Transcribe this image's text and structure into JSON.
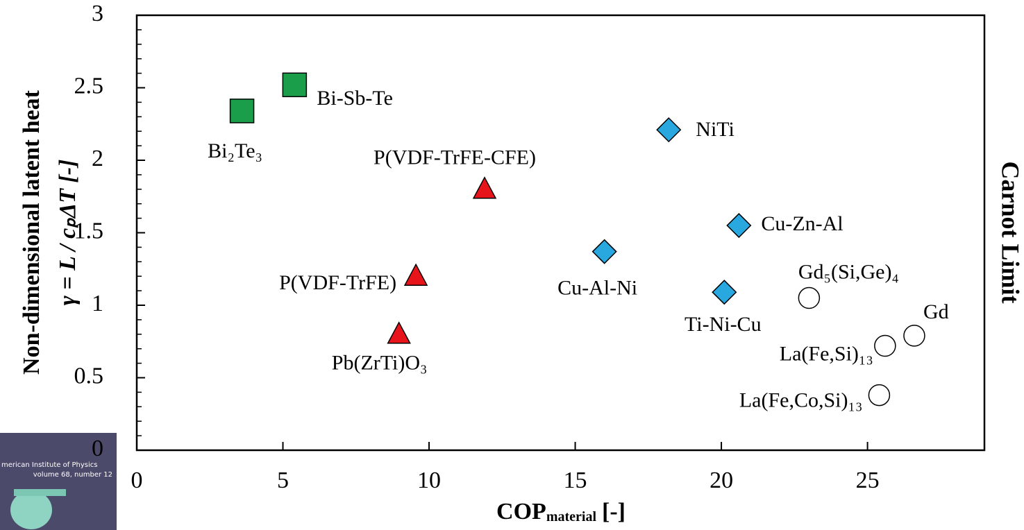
{
  "chart_data": {
    "type": "scatter",
    "xlim": [
      0,
      29
    ],
    "ylim": [
      0,
      3
    ],
    "xticks": [
      0,
      5,
      10,
      15,
      20,
      25
    ],
    "yticks": [
      0,
      0.5,
      1,
      1.5,
      2,
      2.5,
      3
    ],
    "x_label": "COP",
    "x_label_sub": "material",
    "x_label_unit": "[-]",
    "y_label": "Non-dimensional latent heat",
    "y_label_2": "γ = L / cₚΔT [-]",
    "right_label": "Carnot Limit",
    "series": [
      {
        "marker": "square",
        "color": "#1a9e4a",
        "x": [
          3.6,
          5.4
        ],
        "values": [
          2.34,
          2.52
        ],
        "labels": [
          "Bi₂Te₃",
          "Bi-Sb-Te"
        ]
      },
      {
        "marker": "triangle",
        "color": "#e8141b",
        "x": [
          11.9,
          9.55,
          8.97
        ],
        "values": [
          1.8,
          1.2,
          0.8
        ],
        "labels": [
          "P(VDF-TrFE-CFE)",
          "P(VDF-TrFE)",
          "Pb(ZrTi)O₃"
        ]
      },
      {
        "marker": "diamond",
        "color": "#29a8e0",
        "x": [
          18.2,
          20.6,
          16.0,
          20.1
        ],
        "values": [
          2.21,
          1.55,
          1.37,
          1.09
        ],
        "labels": [
          "NiTi",
          "Cu-Zn-Al",
          "Cu-Al-Ni",
          "Ti-Ni-Cu"
        ]
      },
      {
        "marker": "circle",
        "color": "#ffffff",
        "x": [
          23.0,
          26.6,
          25.6,
          25.4
        ],
        "values": [
          1.05,
          0.79,
          0.72,
          0.38
        ],
        "labels": [
          "Gd₅(Si,Ge)₄",
          "Gd",
          "La(Fe,Si)₁₃",
          "La(Fe,Co,Si)₁₃"
        ]
      }
    ]
  },
  "cover": {
    "line1": "merican Institute of Physics",
    "line2": "volume 68, number 12"
  }
}
